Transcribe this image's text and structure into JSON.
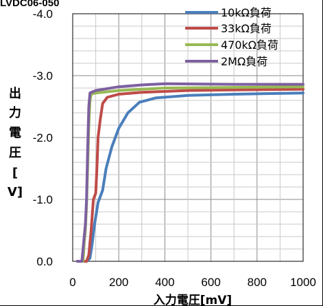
{
  "header_fragment": "LVDC06-050",
  "chart_data": {
    "type": "line",
    "title": "",
    "xlabel": "入力電圧[mV]",
    "ylabel": "出力電圧[V]",
    "xlim": [
      0,
      1000
    ],
    "ylim": [
      0,
      -4.0
    ],
    "x_ticks": [
      0,
      200,
      400,
      600,
      800,
      1000
    ],
    "x_tick_labels": [
      "0",
      "200",
      "400",
      "600",
      "800",
      "1000"
    ],
    "y_ticks": [
      0,
      -1.0,
      -2.0,
      -3.0,
      -4.0
    ],
    "y_tick_labels": [
      "0.0",
      "-1.0",
      "-2.0",
      "-3.0",
      "-4.0"
    ],
    "grid": true,
    "legend_position": "top-right",
    "series": [
      {
        "name": "10kΩ負荷",
        "color": "#4a7ebb",
        "points": [
          [
            20,
            0
          ],
          [
            60,
            0
          ],
          [
            75,
            -0.05
          ],
          [
            85,
            -0.3
          ],
          [
            95,
            -0.6
          ],
          [
            110,
            -0.95
          ],
          [
            130,
            -1.15
          ],
          [
            145,
            -1.5
          ],
          [
            170,
            -1.85
          ],
          [
            200,
            -2.15
          ],
          [
            240,
            -2.4
          ],
          [
            290,
            -2.57
          ],
          [
            360,
            -2.64
          ],
          [
            500,
            -2.68
          ],
          [
            700,
            -2.7
          ],
          [
            1000,
            -2.72
          ]
        ]
      },
      {
        "name": "33kΩ負荷",
        "color": "#be4b48",
        "points": [
          [
            20,
            0
          ],
          [
            60,
            0
          ],
          [
            70,
            -0.1
          ],
          [
            80,
            -0.5
          ],
          [
            90,
            -1.0
          ],
          [
            100,
            -1.1
          ],
          [
            105,
            -1.5
          ],
          [
            110,
            -2.0
          ],
          [
            120,
            -2.3
          ],
          [
            130,
            -2.55
          ],
          [
            150,
            -2.65
          ],
          [
            200,
            -2.7
          ],
          [
            300,
            -2.73
          ],
          [
            500,
            -2.76
          ],
          [
            700,
            -2.77
          ],
          [
            1000,
            -2.78
          ]
        ]
      },
      {
        "name": "470kΩ負荷",
        "color": "#98b954",
        "points": [
          [
            20,
            0
          ],
          [
            45,
            0
          ],
          [
            50,
            -0.3
          ],
          [
            55,
            -0.5
          ],
          [
            60,
            -0.9
          ],
          [
            65,
            -1.5
          ],
          [
            70,
            -2.2
          ],
          [
            75,
            -2.6
          ],
          [
            80,
            -2.7
          ],
          [
            100,
            -2.72
          ],
          [
            200,
            -2.76
          ],
          [
            400,
            -2.8
          ],
          [
            700,
            -2.81
          ],
          [
            1000,
            -2.82
          ]
        ]
      },
      {
        "name": "2MΩ負荷",
        "color": "#7d60a0",
        "points": [
          [
            20,
            0
          ],
          [
            40,
            0
          ],
          [
            55,
            -0.6
          ],
          [
            60,
            -1.0
          ],
          [
            65,
            -1.8
          ],
          [
            70,
            -2.5
          ],
          [
            75,
            -2.72
          ],
          [
            100,
            -2.76
          ],
          [
            200,
            -2.82
          ],
          [
            300,
            -2.85
          ],
          [
            400,
            -2.87
          ],
          [
            700,
            -2.86
          ],
          [
            1000,
            -2.86
          ]
        ]
      }
    ]
  }
}
